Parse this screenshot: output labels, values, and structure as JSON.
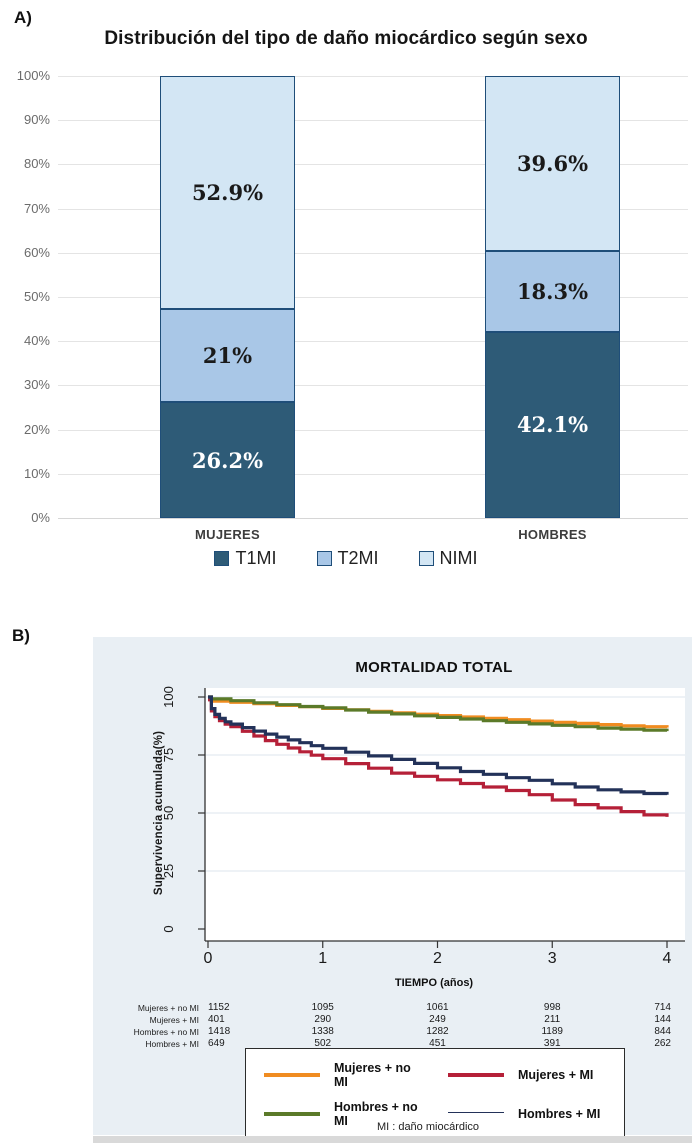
{
  "page": {
    "panel_a_label": "A)",
    "panel_b_label": "B)"
  },
  "chart_data": [
    {
      "type": "bar",
      "stacked": true,
      "title": "Distribución del tipo de daño miocárdico según sexo",
      "categories": [
        "MUJERES",
        "HOMBRES"
      ],
      "series": [
        {
          "name": "T1MI",
          "values": [
            26.2,
            42.1
          ],
          "color": "#2E5B77",
          "label_color": "#ffffff"
        },
        {
          "name": "T2MI",
          "values": [
            21,
            18.3
          ],
          "color": "#A9C7E7",
          "label_color": "#1a1a1a"
        },
        {
          "name": "NIMI",
          "values": [
            52.9,
            39.6
          ],
          "color": "#D3E6F4",
          "label_color": "#1a1a1a"
        }
      ],
      "segment_labels": [
        [
          "26.2%",
          "42.1%"
        ],
        [
          "21%",
          "18.3%"
        ],
        [
          "52.9%",
          "39.6%"
        ]
      ],
      "ylim": [
        0,
        100
      ],
      "yticks": [
        0,
        10,
        20,
        30,
        40,
        50,
        60,
        70,
        80,
        90,
        100
      ],
      "ytick_suffix": "%",
      "grid": true,
      "legend_position": "bottom",
      "bar_border_color": "#1F4E79"
    },
    {
      "type": "line",
      "subtype": "kaplan-meier-step",
      "title": "MORTALIDAD TOTAL",
      "xlabel": "TIEMPO (años)",
      "ylabel": "Supervivencia acumulada(%)",
      "xlim": [
        0,
        4
      ],
      "ylim": [
        0,
        100
      ],
      "xticks": [
        0,
        1,
        2,
        3,
        4
      ],
      "yticks": [
        0,
        25,
        50,
        75,
        100
      ],
      "grid": true,
      "legend_position": "bottom-box",
      "footnote": "MI : daño miocárdico",
      "series": [
        {
          "name": "Mujeres + no MI",
          "color": "#F08C21",
          "points": [
            [
              0,
              100
            ],
            [
              0.03,
              98.2
            ],
            [
              0.2,
              97.7
            ],
            [
              0.4,
              97.1
            ],
            [
              0.6,
              96.4
            ],
            [
              0.8,
              95.8
            ],
            [
              1.0,
              95.1
            ],
            [
              1.2,
              94.5
            ],
            [
              1.4,
              93.8
            ],
            [
              1.6,
              93.2
            ],
            [
              1.8,
              92.6
            ],
            [
              2.0,
              92.0
            ],
            [
              2.2,
              91.4
            ],
            [
              2.4,
              90.8
            ],
            [
              2.6,
              90.2
            ],
            [
              2.8,
              89.6
            ],
            [
              3.0,
              89.1
            ],
            [
              3.2,
              88.6
            ],
            [
              3.4,
              88.1
            ],
            [
              3.6,
              87.6
            ],
            [
              3.8,
              87.2
            ],
            [
              4.0,
              86.8
            ]
          ]
        },
        {
          "name": "Mujeres + MI",
          "color": "#B52038",
          "points": [
            [
              0,
              98.8
            ],
            [
              0.03,
              94.0
            ],
            [
              0.06,
              91.5
            ],
            [
              0.1,
              89.8
            ],
            [
              0.15,
              88.3
            ],
            [
              0.2,
              87.2
            ],
            [
              0.3,
              85.2
            ],
            [
              0.4,
              83.2
            ],
            [
              0.5,
              81.2
            ],
            [
              0.6,
              79.6
            ],
            [
              0.7,
              78.0
            ],
            [
              0.8,
              76.4
            ],
            [
              0.9,
              74.9
            ],
            [
              1.0,
              73.4
            ],
            [
              1.2,
              71.3
            ],
            [
              1.4,
              69.3
            ],
            [
              1.6,
              67.2
            ],
            [
              1.8,
              65.8
            ],
            [
              2.0,
              64.3
            ],
            [
              2.2,
              62.7
            ],
            [
              2.4,
              61.2
            ],
            [
              2.6,
              59.7
            ],
            [
              2.8,
              57.9
            ],
            [
              3.0,
              55.6
            ],
            [
              3.2,
              53.6
            ],
            [
              3.4,
              52.2
            ],
            [
              3.6,
              50.6
            ],
            [
              3.8,
              49.2
            ],
            [
              4.0,
              48.3
            ]
          ]
        },
        {
          "name": "Hombres + no MI",
          "color": "#5B7A29",
          "points": [
            [
              0,
              100
            ],
            [
              0.03,
              99.2
            ],
            [
              0.2,
              98.4
            ],
            [
              0.4,
              97.5
            ],
            [
              0.6,
              96.7
            ],
            [
              0.8,
              95.9
            ],
            [
              1.0,
              95.3
            ],
            [
              1.2,
              94.4
            ],
            [
              1.4,
              93.5
            ],
            [
              1.6,
              92.7
            ],
            [
              1.8,
              91.9
            ],
            [
              2.0,
              91.2
            ],
            [
              2.2,
              90.5
            ],
            [
              2.4,
              89.8
            ],
            [
              2.6,
              89.1
            ],
            [
              2.8,
              88.4
            ],
            [
              3.0,
              87.8
            ],
            [
              3.2,
              87.2
            ],
            [
              3.4,
              86.6
            ],
            [
              3.6,
              86.1
            ],
            [
              3.8,
              85.7
            ],
            [
              4.0,
              85.3
            ]
          ]
        },
        {
          "name": "Hombres + MI",
          "color": "#233259",
          "points": [
            [
              0,
              100
            ],
            [
              0.03,
              95.0
            ],
            [
              0.06,
              92.5
            ],
            [
              0.1,
              90.8
            ],
            [
              0.15,
              89.3
            ],
            [
              0.2,
              88.3
            ],
            [
              0.3,
              86.8
            ],
            [
              0.4,
              85.3
            ],
            [
              0.5,
              84.0
            ],
            [
              0.6,
              82.7
            ],
            [
              0.7,
              81.5
            ],
            [
              0.8,
              80.3
            ],
            [
              0.9,
              79.0
            ],
            [
              1.0,
              77.9
            ],
            [
              1.2,
              76.2
            ],
            [
              1.4,
              74.6
            ],
            [
              1.6,
              73.1
            ],
            [
              1.8,
              71.4
            ],
            [
              2.0,
              69.5
            ],
            [
              2.2,
              67.9
            ],
            [
              2.4,
              66.7
            ],
            [
              2.6,
              65.2
            ],
            [
              2.8,
              64.1
            ],
            [
              3.0,
              62.6
            ],
            [
              3.2,
              61.2
            ],
            [
              3.4,
              60.0
            ],
            [
              3.6,
              59.1
            ],
            [
              3.8,
              58.4
            ],
            [
              4.0,
              57.9
            ]
          ]
        }
      ],
      "risk_table": {
        "time_points": [
          0,
          1,
          2,
          3,
          4
        ],
        "rows": [
          {
            "label": "Mujeres + no MI",
            "values": [
              1152,
              1095,
              1061,
              998,
              714
            ]
          },
          {
            "label": "Mujeres + MI",
            "values": [
              401,
              290,
              249,
              211,
              144
            ]
          },
          {
            "label": "Hombres + no MI",
            "values": [
              1418,
              1338,
              1282,
              1189,
              844
            ]
          },
          {
            "label": "Hombres + MI",
            "values": [
              649,
              502,
              451,
              391,
              262
            ]
          }
        ]
      },
      "legend_order": [
        "Mujeres + no MI",
        "Mujeres + MI",
        "Hombres + no MI",
        "Hombres + MI"
      ]
    }
  ]
}
